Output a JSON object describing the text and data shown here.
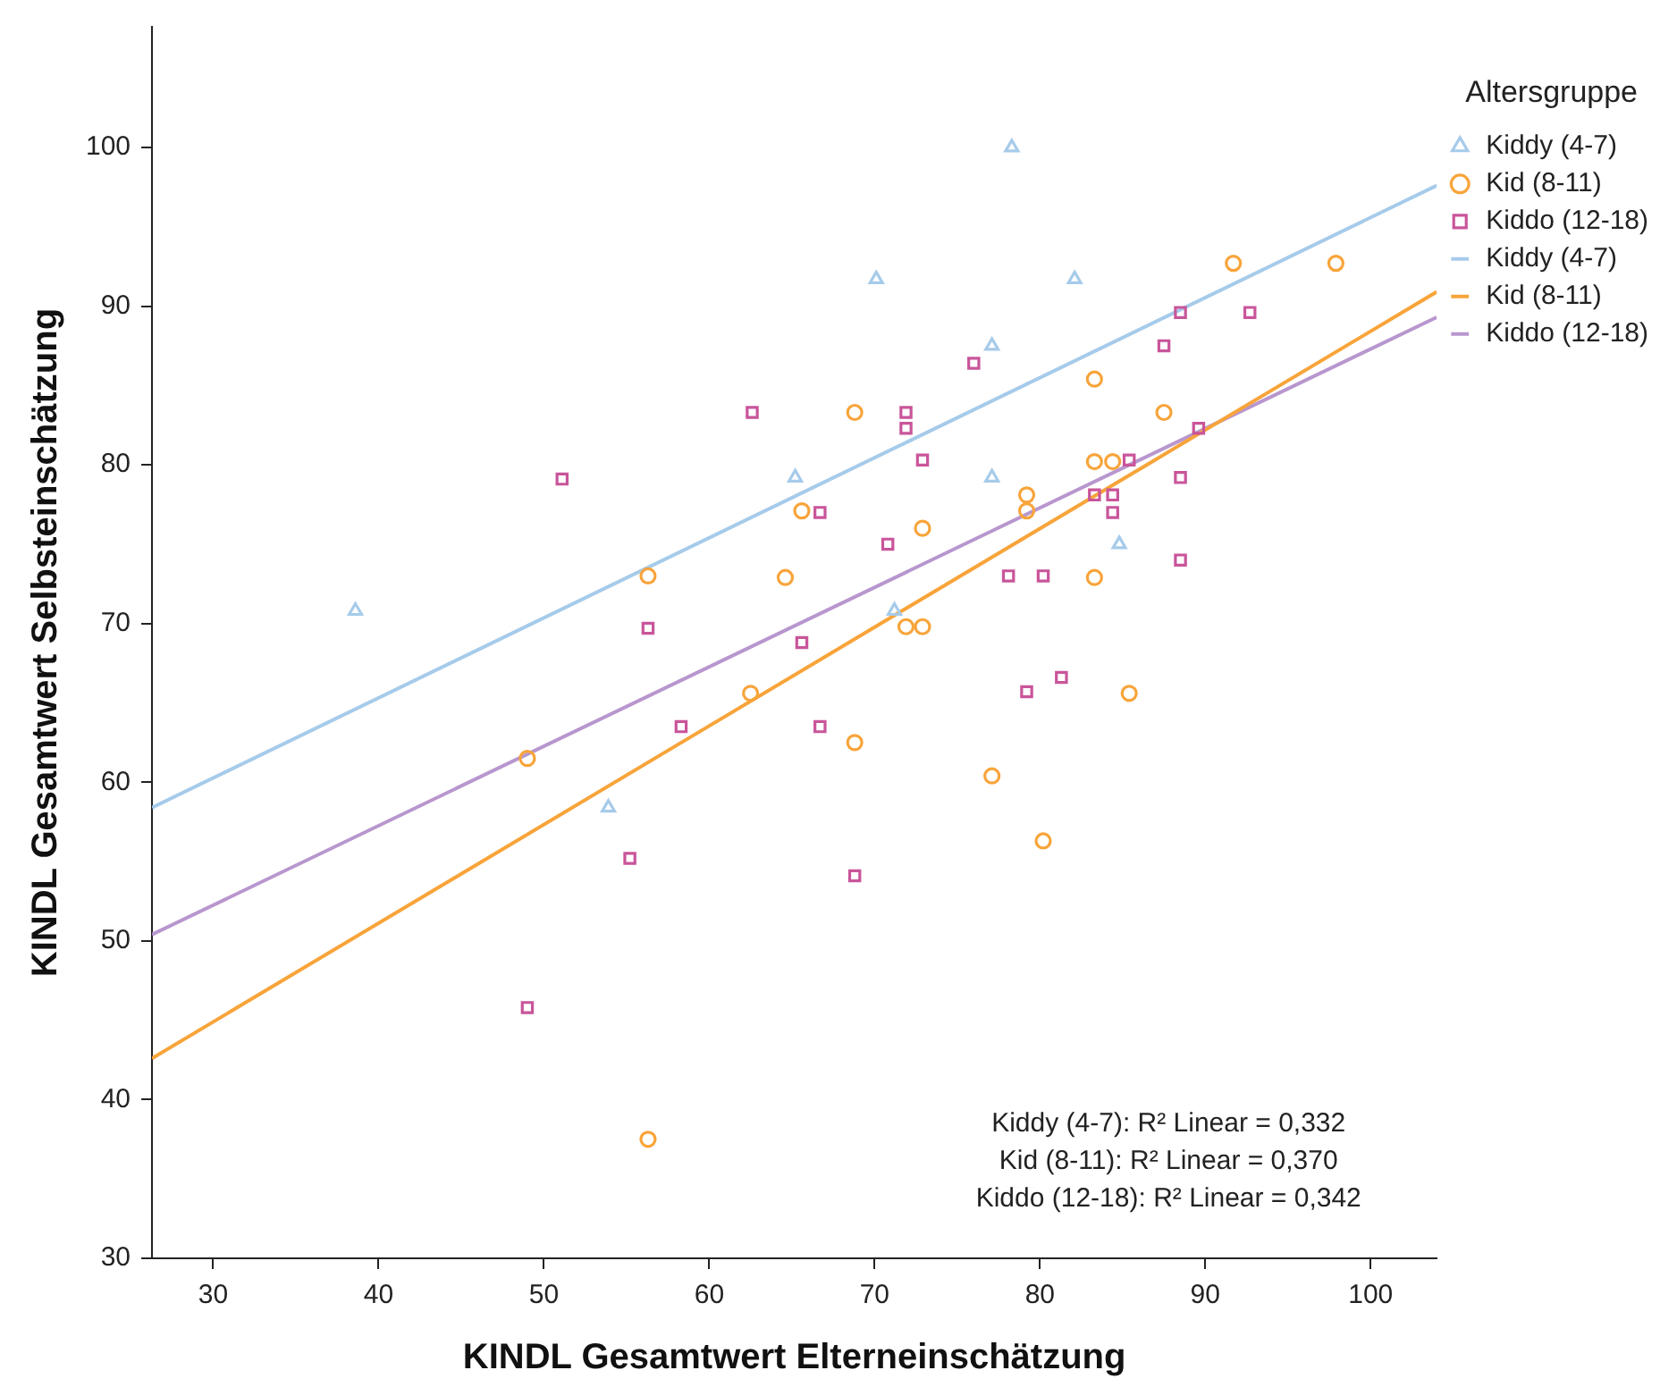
{
  "chart_data": {
    "type": "scatter",
    "xlabel": "KINDL Gesamtwert Elterneinschätzung",
    "ylabel": "KINDL Gesamtwert Selbsteinschätzung",
    "legend_title": "Altersgruppe",
    "legend": "top right",
    "grid": false,
    "xlim": [
      26.3,
      104
    ],
    "ylim": [
      30,
      107.6
    ],
    "xticks": [
      30,
      40,
      50,
      60,
      70,
      80,
      90,
      100
    ],
    "yticks": [
      30,
      40,
      50,
      60,
      70,
      80,
      90,
      100
    ],
    "series": [
      {
        "name": "Kiddy (4-7)",
        "marker": "triangle",
        "color": "#a6cbea",
        "x": [
          38.6,
          53.9,
          65.2,
          70.1,
          71.2,
          77.1,
          77.1,
          78.3,
          82.1,
          84.8
        ],
        "values": [
          70.8,
          58.4,
          79.2,
          91.7,
          70.8,
          87.5,
          79.2,
          100,
          91.7,
          75.0
        ]
      },
      {
        "name": "Kid (8-11)",
        "marker": "circle",
        "color": "#f8a43a",
        "x": [
          49.0,
          56.3,
          56.3,
          62.5,
          64.6,
          65.6,
          68.8,
          68.8,
          71.9,
          72.9,
          72.9,
          77.1,
          79.2,
          79.2,
          80.2,
          83.3,
          83.3,
          84.4,
          83.3,
          85.4,
          87.5,
          91.7,
          97.9
        ],
        "values": [
          61.5,
          73.0,
          37.5,
          65.6,
          72.9,
          77.1,
          83.3,
          62.5,
          69.8,
          69.8,
          76.0,
          60.4,
          78.1,
          77.1,
          56.3,
          85.4,
          80.2,
          80.2,
          72.9,
          65.6,
          83.3,
          92.7,
          92.7
        ]
      },
      {
        "name": "Kiddo (12-18)",
        "marker": "square",
        "color": "#c9559a",
        "x": [
          62.6,
          51.1,
          56.3,
          65.6,
          58.3,
          55.2,
          49.0,
          66.7,
          79.2,
          81.3,
          68.8,
          76.0,
          71.9,
          71.9,
          72.9,
          66.7,
          70.8,
          88.5,
          92.7,
          87.5,
          89.6,
          85.4,
          88.5,
          83.3,
          84.4,
          84.4,
          88.5,
          78.1,
          80.2
        ],
        "values": [
          83.3,
          79.1,
          69.7,
          68.8,
          63.5,
          55.2,
          45.8,
          63.5,
          65.7,
          66.6,
          54.1,
          86.4,
          83.3,
          82.3,
          80.3,
          77.0,
          75.0,
          89.6,
          89.6,
          87.5,
          82.3,
          80.3,
          79.2,
          78.1,
          78.1,
          77.0,
          74.0,
          73.0,
          73.0
        ]
      },
      {
        "name": "Kiddy (4-7)",
        "type": "line",
        "marker": "none",
        "color": "#a6cbea",
        "x": [
          26.3,
          104
        ],
        "values": [
          58.4,
          97.6
        ]
      },
      {
        "name": "Kid (8-11)",
        "type": "line",
        "marker": "none",
        "color": "#f8a43a",
        "x": [
          26.3,
          104
        ],
        "values": [
          42.6,
          90.9
        ]
      },
      {
        "name": "Kiddo (12-18)",
        "type": "line",
        "marker": "none",
        "color": "#b896ce",
        "x": [
          26.3,
          104
        ],
        "values": [
          50.4,
          89.3
        ]
      }
    ],
    "annotations": [
      "Kiddy (4-7): R² Linear = 0,332",
      "Kid (8-11): R² Linear = 0,370",
      "Kiddo (12-18): R² Linear = 0,342"
    ]
  }
}
